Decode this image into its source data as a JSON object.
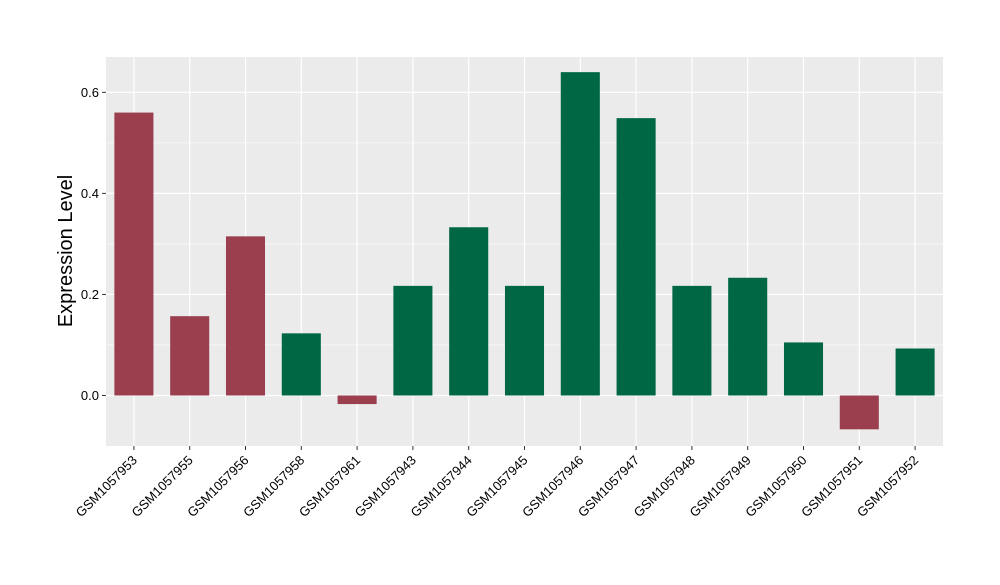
{
  "chart_data": {
    "type": "bar",
    "ylabel": "Expression Level",
    "ylim": [
      -0.1,
      0.67
    ],
    "yticks": [
      0.0,
      0.2,
      0.4,
      0.6
    ],
    "ytick_labels": [
      "0.0",
      "0.2",
      "0.4",
      "0.6"
    ],
    "categories": [
      "GSM1057953",
      "GSM1057955",
      "GSM1057956",
      "GSM1057958",
      "GSM1057961",
      "GSM1057943",
      "GSM1057944",
      "GSM1057945",
      "GSM1057946",
      "GSM1057947",
      "GSM1057948",
      "GSM1057949",
      "GSM1057950",
      "GSM1057951",
      "GSM1057952"
    ],
    "values": [
      0.56,
      0.157,
      0.315,
      0.123,
      -0.017,
      0.217,
      0.333,
      0.217,
      0.64,
      0.549,
      0.217,
      0.233,
      0.105,
      -0.067,
      0.093
    ],
    "bar_colors": [
      "#9b3f4e",
      "#9b3f4e",
      "#9b3f4e",
      "#006745",
      "#9b3f4e",
      "#006745",
      "#006745",
      "#006745",
      "#006745",
      "#006745",
      "#006745",
      "#006745",
      "#006745",
      "#9b3f4e",
      "#006745"
    ],
    "panel_background": "#ebebeb",
    "grid_color": "#ffffff",
    "grid": true
  }
}
